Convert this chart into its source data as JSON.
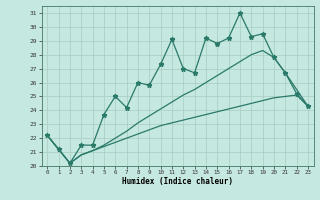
{
  "x_values": [
    0,
    1,
    2,
    3,
    4,
    5,
    6,
    7,
    8,
    9,
    10,
    11,
    12,
    13,
    14,
    15,
    16,
    17,
    18,
    19,
    20,
    21,
    22,
    23
  ],
  "line1": [
    22.2,
    21.2,
    20.2,
    21.5,
    21.5,
    23.7,
    25.0,
    24.2,
    26.0,
    25.8,
    27.3,
    29.1,
    27.0,
    26.7,
    29.2,
    28.8,
    29.2,
    31.0,
    29.3,
    29.5,
    27.8,
    26.7,
    25.2,
    24.3
  ],
  "line2_lower": [
    22.2,
    21.2,
    20.2,
    20.8,
    21.1,
    21.4,
    21.7,
    22.0,
    22.3,
    22.6,
    22.9,
    23.1,
    23.3,
    23.5,
    23.7,
    23.9,
    24.1,
    24.3,
    24.5,
    24.7,
    24.9,
    25.0,
    25.1,
    24.3
  ],
  "line3_upper": [
    22.2,
    21.2,
    20.2,
    20.8,
    21.1,
    21.5,
    22.0,
    22.5,
    23.1,
    23.6,
    24.1,
    24.6,
    25.1,
    25.5,
    26.0,
    26.5,
    27.0,
    27.5,
    28.0,
    28.3,
    27.8,
    26.7,
    25.5,
    24.3
  ],
  "bg_color": "#c5e8e0",
  "grid_color": "#a8ccc0",
  "line_color": "#2a7a6a",
  "xlabel": "Humidex (Indice chaleur)",
  "xlim": [
    -0.5,
    23.5
  ],
  "ylim": [
    20,
    31.5
  ],
  "yticks": [
    20,
    21,
    22,
    23,
    24,
    25,
    26,
    27,
    28,
    29,
    30,
    31
  ],
  "xticks": [
    0,
    1,
    2,
    3,
    4,
    5,
    6,
    7,
    8,
    9,
    10,
    11,
    12,
    13,
    14,
    15,
    16,
    17,
    18,
    19,
    20,
    21,
    22,
    23
  ]
}
